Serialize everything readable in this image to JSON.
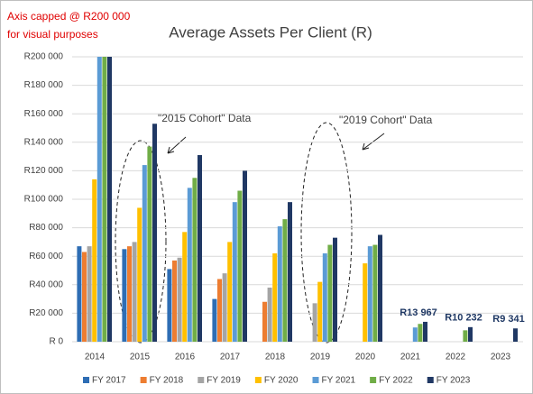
{
  "chart_data": {
    "type": "bar",
    "title": "Average Assets Per Client (R)",
    "annotations": [
      "Axis capped @ R200 000",
      "for visual purposes",
      "\"2015 Cohort\" Data",
      "\"2019 Cohort\" Data"
    ],
    "categories": [
      "2014",
      "2015",
      "2016",
      "2017",
      "2018",
      "2019",
      "2020",
      "2021",
      "2022",
      "2023"
    ],
    "series": [
      {
        "name": "FY 2017",
        "color": "#2e6db4",
        "values": [
          67000,
          65000,
          51000,
          30000,
          null,
          null,
          null,
          null,
          null,
          null
        ]
      },
      {
        "name": "FY 2018",
        "color": "#ed7d31",
        "values": [
          63000,
          67000,
          57000,
          44000,
          28000,
          null,
          null,
          null,
          null,
          null
        ]
      },
      {
        "name": "FY 2019",
        "color": "#a5a5a5",
        "values": [
          67000,
          70000,
          59000,
          48000,
          38000,
          27000,
          null,
          null,
          null,
          null
        ]
      },
      {
        "name": "FY 2020",
        "color": "#ffc000",
        "values": [
          114000,
          94000,
          77000,
          70000,
          62000,
          42000,
          55000,
          null,
          null,
          null
        ]
      },
      {
        "name": "FY 2021",
        "color": "#5b9bd5",
        "values": [
          200000,
          124000,
          108000,
          98000,
          81000,
          62000,
          67000,
          10000,
          null,
          null
        ]
      },
      {
        "name": "FY 2022",
        "color": "#70ad47",
        "values": [
          200000,
          137000,
          115000,
          106000,
          86000,
          68000,
          68000,
          12500,
          8000,
          null
        ]
      },
      {
        "name": "FY 2023",
        "color": "#203864",
        "values": [
          200000,
          153000,
          131000,
          120000,
          98000,
          73000,
          75000,
          13967,
          10232,
          9341
        ],
        "value_labels": [
          null,
          null,
          null,
          null,
          null,
          null,
          null,
          "R13 967",
          "R10 232",
          "R9 341"
        ]
      }
    ],
    "ylim": [
      0,
      200000
    ],
    "yticks": [
      {
        "value": 0,
        "label": "R 0"
      },
      {
        "value": 20000,
        "label": "R20 000"
      },
      {
        "value": 40000,
        "label": "R40 000"
      },
      {
        "value": 60000,
        "label": "R60 000"
      },
      {
        "value": 80000,
        "label": "R80 000"
      },
      {
        "value": 100000,
        "label": "R100 000"
      },
      {
        "value": 120000,
        "label": "R120 000"
      },
      {
        "value": 140000,
        "label": "R140 000"
      },
      {
        "value": 160000,
        "label": "R160 000"
      },
      {
        "value": 180000,
        "label": "R180 000"
      },
      {
        "value": 200000,
        "label": "R200 000"
      }
    ],
    "grid": true,
    "legend": "bottom"
  }
}
